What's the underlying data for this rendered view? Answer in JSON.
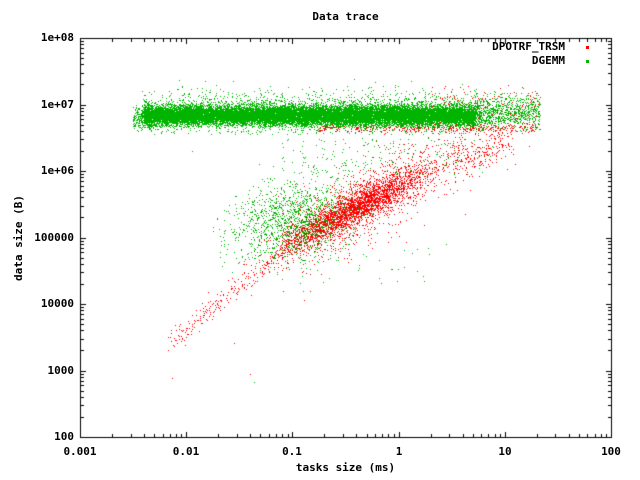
{
  "background": "#ffffff",
  "text_color": "#000000",
  "chart_data": {
    "type": "scatter",
    "title": "Data trace",
    "xlabel": "tasks size (ms)",
    "ylabel": "data size (B)",
    "xscale": "log",
    "yscale": "log",
    "xlim": [
      0.001,
      100
    ],
    "ylim": [
      100,
      100000000
    ],
    "x_ticks": [
      "0.001",
      "0.01",
      "0.1",
      "1",
      "10",
      "100"
    ],
    "x_tick_log_values": [
      -3,
      -2,
      -1,
      0,
      1,
      2
    ],
    "y_ticks": [
      "100",
      "1000",
      "10000",
      "100000",
      "1e+06",
      "1e+07",
      "1e+08"
    ],
    "y_tick_log_values": [
      2,
      3,
      4,
      5,
      6,
      7,
      8
    ],
    "grid": false,
    "legend_position": "inside-top-right",
    "point_style": "dot",
    "seed": 42,
    "series": [
      {
        "name": "DPOTRF_TRSM",
        "color": "#ff0000",
        "description": "diagonal log-log correlation from ~(0.007ms,3e3B) to ~(6ms,2e6B), dense core near (0.1-1ms,1e5-6e5B), thin streak just under green band (y~4.5e6B) for x>0.17ms, sparse dots inside band at right",
        "clusters": [
          {
            "n": 2600,
            "logx": {
              "dist": "normal",
              "mean": -0.45,
              "sd": 0.36,
              "min": -1.12,
              "max": 0.55
            },
            "logy": {
              "dist": "trend",
              "slope": 0.81,
              "intercept": 5.78,
              "sd": 0.12
            }
          },
          {
            "n": 240,
            "logx": {
              "dist": "uniform",
              "min": -2.18,
              "max": -1.05
            },
            "logy": {
              "dist": "trend",
              "slope": 1.285,
              "intercept": 6.21,
              "sd": 0.09
            }
          },
          {
            "n": 1200,
            "logx": {
              "dist": "normal",
              "mean": -0.35,
              "sd": 0.45,
              "min": -1.55,
              "max": 0.92
            },
            "logy": {
              "dist": "trend",
              "slope": 0.81,
              "intercept": 5.78,
              "sd": 0.3
            }
          },
          {
            "n": 230,
            "logx": {
              "dist": "uniform",
              "min": 0.5,
              "max": 1.08
            },
            "logy": {
              "dist": "trend",
              "slope": 0.5,
              "intercept": 5.9,
              "sd": 0.16
            }
          },
          {
            "n": 420,
            "logx": {
              "dist": "uniform",
              "min": -0.78,
              "max": 1.3
            },
            "logy": {
              "dist": "normal",
              "mean": 6.65,
              "sd": 0.035
            }
          },
          {
            "n": 220,
            "logx": {
              "dist": "uniform",
              "min": 0.3,
              "max": 1.33
            },
            "logy": {
              "dist": "normal",
              "mean": 6.95,
              "sd": 0.16,
              "min": 6.6,
              "max": 7.3
            }
          },
          {
            "points": [
              [
                -2.13,
                2.89
              ],
              [
                -1.4,
                2.95
              ],
              [
                -2.0,
                3.5
              ],
              [
                -1.55,
                3.42
              ],
              [
                1.23,
                6.38
              ],
              [
                1.1,
                6.1
              ]
            ]
          }
        ]
      },
      {
        "name": "DGEMM",
        "color": "#00b400",
        "description": "very dense horizontal band 5e6-1.1e7B spanning 0.0035-20ms with sparse halo up to ~2.5e7B, plus diffuse cloud centered ~(0.09ms,2e5B)",
        "clusters": [
          {
            "n": 20000,
            "logx": {
              "dist": "uniform",
              "min": -2.4,
              "max": 0.72
            },
            "logy": {
              "dist": "normal",
              "mean": 6.84,
              "sd": 0.07,
              "min": 6.66,
              "max": 7.06
            }
          },
          {
            "n": 2600,
            "logx": {
              "dist": "uniform",
              "min": -2.42,
              "max": 0.78
            },
            "logy": {
              "dist": "normal",
              "mean": 6.85,
              "sd": 0.15,
              "min": 6.55,
              "max": 7.28
            }
          },
          {
            "n": 450,
            "logx": {
              "dist": "uniform",
              "min": -2.3,
              "max": 1.05
            },
            "logy": {
              "dist": "normal",
              "mean": 6.95,
              "sd": 0.18,
              "min": 6.7,
              "max": 7.38
            }
          },
          {
            "n": 800,
            "logx": {
              "dist": "uniform",
              "min": 0.72,
              "max": 1.33
            },
            "logy": {
              "dist": "normal",
              "mean": 6.88,
              "sd": 0.13,
              "min": 6.6,
              "max": 7.25
            }
          },
          {
            "n": 250,
            "logx": {
              "dist": "uniform",
              "min": -2.5,
              "max": -2.32
            },
            "logy": {
              "dist": "normal",
              "mean": 6.8,
              "sd": 0.1,
              "min": 6.6,
              "max": 7.0
            }
          },
          {
            "n": 1300,
            "logx": {
              "dist": "normal",
              "mean": -1.02,
              "sd": 0.3,
              "min": -1.75,
              "max": 0.2
            },
            "logy": {
              "dist": "trend",
              "slope": 0.35,
              "intercept": 5.62,
              "sd": 0.3,
              "min": 4.4,
              "max": 6.15
            }
          },
          {
            "n": 200,
            "logx": {
              "dist": "uniform",
              "min": -1.1,
              "max": 0.9
            },
            "logy": {
              "dist": "uniform",
              "min": 5.95,
              "max": 6.5
            }
          },
          {
            "n": 35,
            "logx": {
              "dist": "uniform",
              "min": -1.6,
              "max": 0.3
            },
            "logy": {
              "dist": "uniform",
              "min": 4.3,
              "max": 4.9
            }
          },
          {
            "points": [
              [
                -1.36,
                2.83
              ],
              [
                -0.9,
                4.2
              ],
              [
                0.05,
                4.55
              ],
              [
                0.45,
                4.9
              ],
              [
                -1.95,
                6.3
              ]
            ]
          }
        ]
      }
    ],
    "axis_style": {
      "frame_color": "#000000",
      "major_tick_len": 5,
      "minor_tick_len": 3,
      "minor_tick_multiples": [
        2,
        3,
        4,
        5,
        6,
        7,
        8,
        9
      ]
    }
  }
}
